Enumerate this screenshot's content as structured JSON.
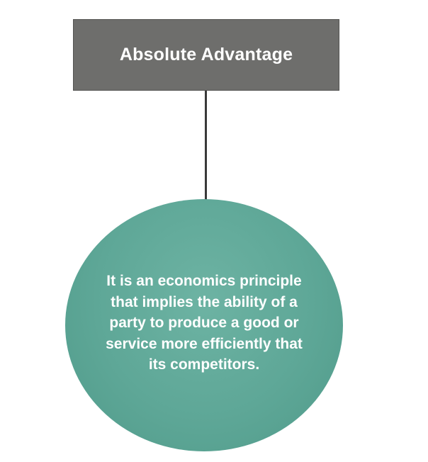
{
  "diagram": {
    "title": "Absolute Advantage",
    "definition": "It is an economics principle that implies the ability of a party to produce a good or service more efficiently that its competitors."
  },
  "colors": {
    "title_box": "#6e6e6c",
    "connector": "#3a3a3a",
    "circle": "#5ea797",
    "text": "#ffffff"
  }
}
